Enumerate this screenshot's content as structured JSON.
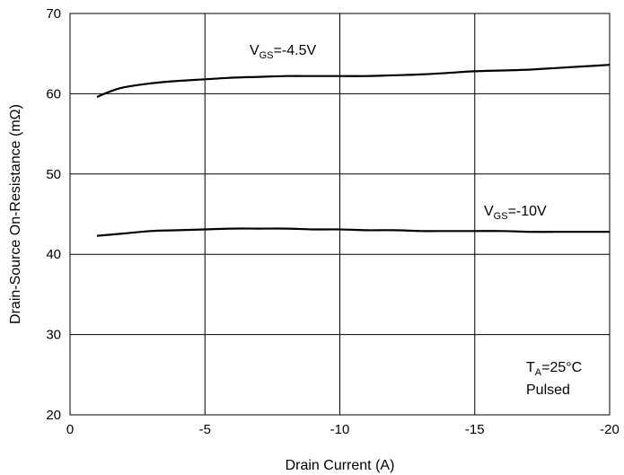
{
  "chart_data": {
    "type": "line",
    "xlabel": "Drain Current (A)",
    "ylabel": "Drain-Source On-Resistance (mΩ)",
    "xlim": [
      0,
      -20
    ],
    "ylim": [
      20,
      70
    ],
    "x_ticks": [
      0,
      -5,
      -10,
      -15,
      -20
    ],
    "y_ticks": [
      20,
      30,
      40,
      50,
      60,
      70
    ],
    "x_tick_labels": [
      "0",
      "-5",
      "-10",
      "-15",
      "-20"
    ],
    "y_tick_labels": [
      "20",
      "30",
      "40",
      "50",
      "60",
      "70"
    ],
    "grid": true,
    "series": [
      {
        "name": "VGS=-4.5V",
        "x": [
          -1,
          -1.5,
          -2,
          -3,
          -4,
          -5,
          -6,
          -7,
          -8,
          -9,
          -10,
          -11,
          -12,
          -13,
          -14,
          -15,
          -16,
          -17,
          -18,
          -19,
          -20
        ],
        "y": [
          59.6,
          60.3,
          60.8,
          61.3,
          61.6,
          61.8,
          62.0,
          62.1,
          62.2,
          62.2,
          62.2,
          62.2,
          62.3,
          62.4,
          62.6,
          62.8,
          62.9,
          63.0,
          63.2,
          63.4,
          63.6
        ]
      },
      {
        "name": "VGS=-10V",
        "x": [
          -1,
          -2,
          -3,
          -4,
          -5,
          -6,
          -7,
          -8,
          -9,
          -10,
          -11,
          -12,
          -13,
          -14,
          -15,
          -16,
          -17,
          -18,
          -19,
          -20
        ],
        "y": [
          42.3,
          42.6,
          42.9,
          43.0,
          43.1,
          43.2,
          43.2,
          43.2,
          43.1,
          43.1,
          43.0,
          43.0,
          42.9,
          42.9,
          42.9,
          42.9,
          42.8,
          42.8,
          42.8,
          42.8
        ]
      }
    ],
    "annotations": {
      "vgs_45": {
        "main": "V",
        "sub": "GS",
        "rest": "=-4.5V"
      },
      "vgs_10": {
        "main": "V",
        "sub": "GS",
        "rest": "=-10V"
      },
      "ta": {
        "main": "T",
        "sub": "A",
        "rest": "=25°C"
      },
      "pulsed": "Pulsed"
    }
  }
}
